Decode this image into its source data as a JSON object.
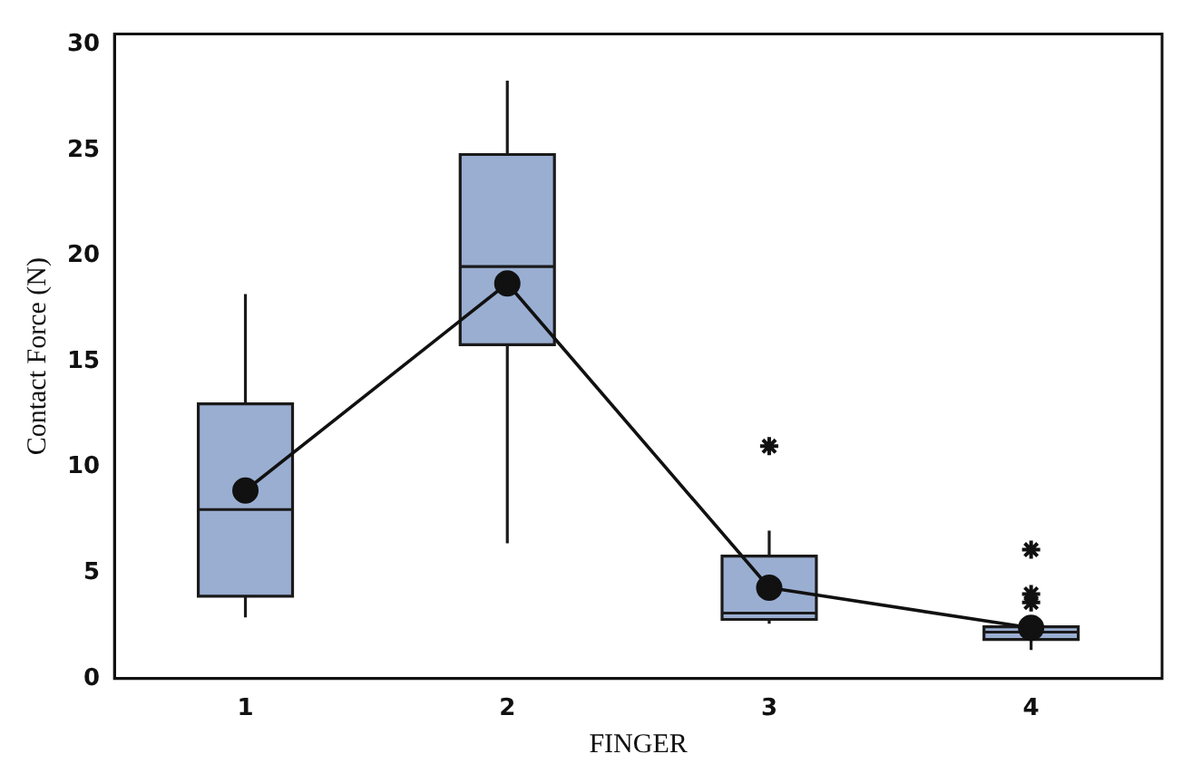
{
  "chart_data": {
    "type": "box",
    "xlabel": "FINGER",
    "ylabel": "Contact Force (N)",
    "categories": [
      "1",
      "2",
      "3",
      "4"
    ],
    "color": "#9aaed2",
    "boxes": [
      {
        "low": 2.9,
        "q1": 3.9,
        "median": 8.0,
        "q3": 13.0,
        "high": 18.2
      },
      {
        "low": 6.4,
        "q1": 15.8,
        "median": 19.5,
        "q3": 24.8,
        "high": 28.3
      },
      {
        "low": 2.6,
        "q1": 2.8,
        "median": 3.1,
        "q3": 5.8,
        "high": 7.0,
        "outliers": [
          11.0
        ]
      },
      {
        "low": 1.35,
        "q1": 1.85,
        "median": 2.2,
        "q3": 2.45,
        "high": 2.8,
        "outliers": [
          3.6,
          4.0,
          6.1
        ]
      }
    ],
    "series": [
      {
        "type": "line",
        "color": "#111111",
        "marker": "circle",
        "values": [
          8.9,
          18.7,
          4.3,
          2.4
        ]
      }
    ],
    "ylim": [
      0,
      30.5
    ],
    "yticks": [
      0,
      5,
      10,
      15,
      20,
      25,
      30
    ],
    "grid": false,
    "legend": false
  }
}
